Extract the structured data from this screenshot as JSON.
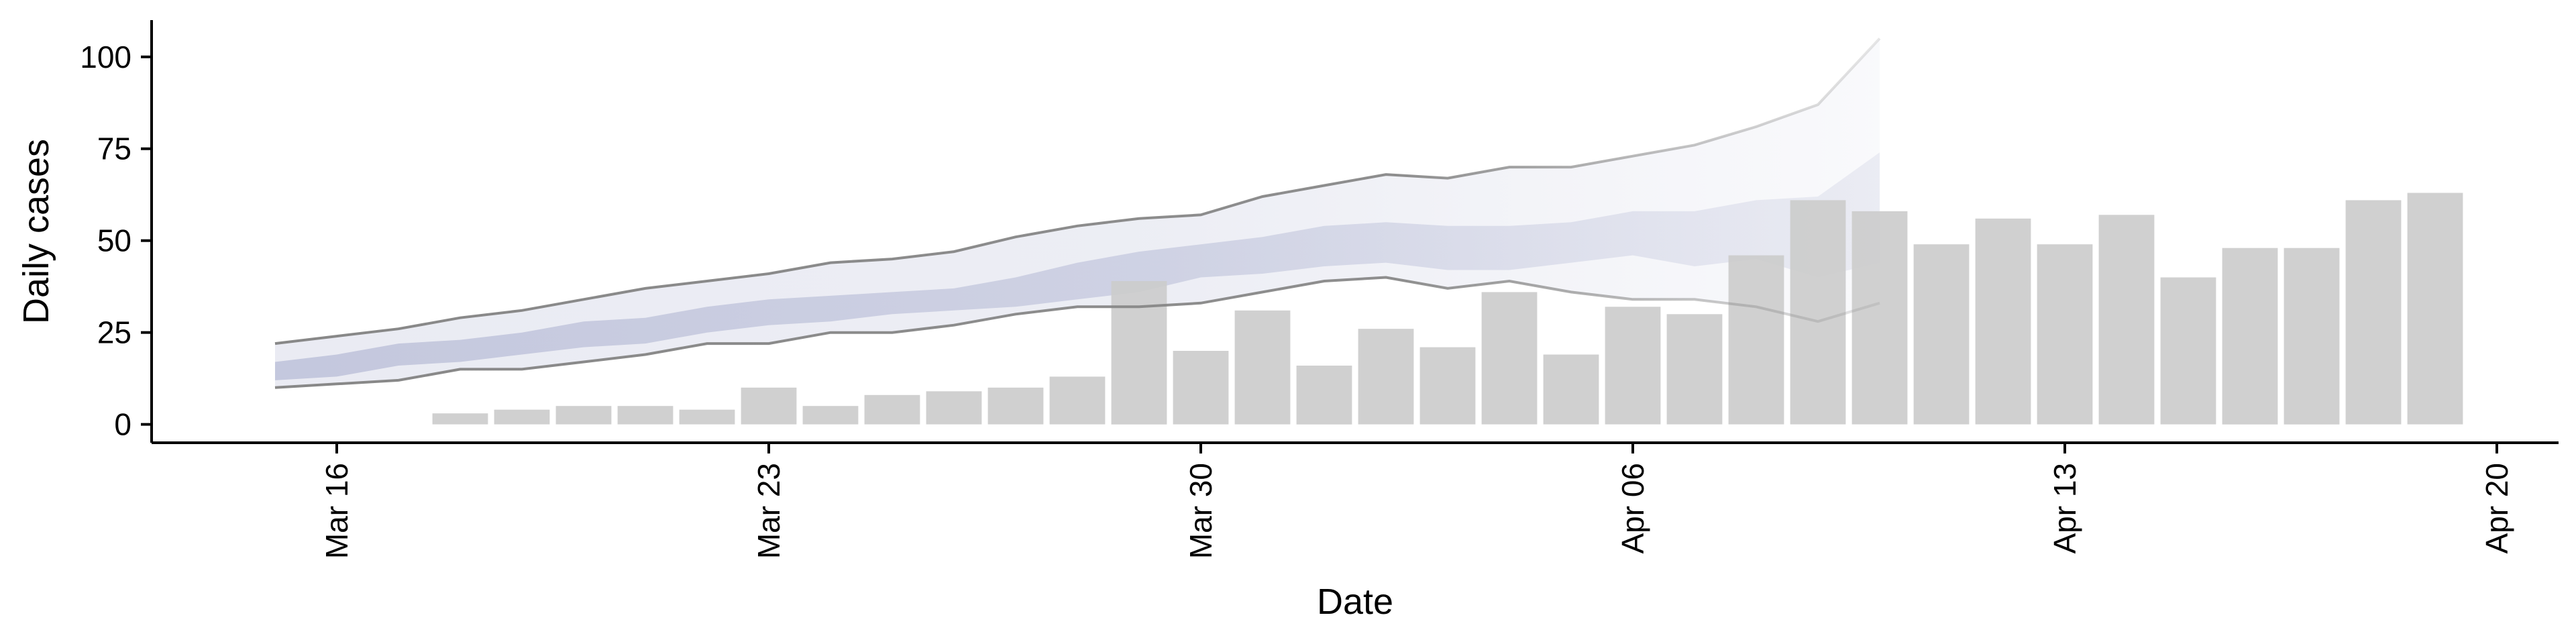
{
  "chart_data": {
    "type": "bar",
    "xlabel": "Date",
    "ylabel": "Daily cases",
    "xlim": [
      "2020-03-13",
      "2020-04-21"
    ],
    "ylim": [
      -5,
      110
    ],
    "x_ticks": [
      "Mar 16",
      "Mar 23",
      "Mar 30",
      "Apr 06",
      "Apr 13",
      "Apr 20"
    ],
    "x_tick_dates": [
      "2020-03-16",
      "2020-03-23",
      "2020-03-30",
      "2020-04-06",
      "2020-04-13",
      "2020-04-20"
    ],
    "y_ticks": [
      0,
      25,
      50,
      75,
      100
    ],
    "grid": false,
    "observed": {
      "dates": [
        "2020-03-18",
        "2020-03-19",
        "2020-03-20",
        "2020-03-21",
        "2020-03-22",
        "2020-03-23",
        "2020-03-24",
        "2020-03-25",
        "2020-03-26",
        "2020-03-27",
        "2020-03-28",
        "2020-03-29",
        "2020-03-30",
        "2020-03-31",
        "2020-04-01",
        "2020-04-02",
        "2020-04-03",
        "2020-04-04",
        "2020-04-05",
        "2020-04-06",
        "2020-04-07",
        "2020-04-08",
        "2020-04-09",
        "2020-04-10",
        "2020-04-11",
        "2020-04-12",
        "2020-04-13",
        "2020-04-14",
        "2020-04-15",
        "2020-04-16",
        "2020-04-17",
        "2020-04-18",
        "2020-04-19"
      ],
      "values": [
        3,
        4,
        5,
        5,
        4,
        10,
        5,
        8,
        9,
        10,
        13,
        39,
        20,
        31,
        16,
        26,
        21,
        36,
        19,
        32,
        30,
        46,
        61,
        58,
        49,
        56,
        49,
        57,
        40,
        48,
        48,
        61,
        63
      ],
      "color": "#cccccc"
    },
    "nowcast": {
      "dates": [
        "2020-03-15",
        "2020-03-16",
        "2020-03-17",
        "2020-03-18",
        "2020-03-19",
        "2020-03-20",
        "2020-03-21",
        "2020-03-22",
        "2020-03-23",
        "2020-03-24",
        "2020-03-25",
        "2020-03-26",
        "2020-03-27",
        "2020-03-28",
        "2020-03-29",
        "2020-03-30",
        "2020-03-31",
        "2020-04-01",
        "2020-04-02",
        "2020-04-03",
        "2020-04-04",
        "2020-04-05",
        "2020-04-06",
        "2020-04-07",
        "2020-04-08",
        "2020-04-09",
        "2020-04-10"
      ],
      "upper_90": [
        22,
        24,
        26,
        29,
        31,
        34,
        37,
        39,
        41,
        44,
        45,
        47,
        51,
        54,
        56,
        57,
        62,
        65,
        68,
        67,
        70,
        70,
        73,
        76,
        81,
        87,
        105
      ],
      "upper_50": [
        17,
        19,
        22,
        23,
        25,
        28,
        29,
        32,
        34,
        35,
        36,
        37,
        40,
        44,
        47,
        49,
        51,
        54,
        55,
        54,
        54,
        55,
        58,
        58,
        61,
        62,
        74
      ],
      "lower_50": [
        12,
        13,
        16,
        17,
        19,
        21,
        22,
        25,
        27,
        28,
        30,
        31,
        32,
        34,
        36,
        40,
        41,
        43,
        44,
        42,
        42,
        44,
        46,
        43,
        45,
        40,
        44
      ],
      "lower_90": [
        10,
        11,
        12,
        15,
        15,
        17,
        19,
        22,
        22,
        25,
        25,
        27,
        30,
        32,
        32,
        33,
        36,
        39,
        40,
        37,
        39,
        36,
        34,
        34,
        32,
        28,
        33
      ],
      "band_color": "#9ea4c8",
      "line_color": "#888888"
    }
  }
}
